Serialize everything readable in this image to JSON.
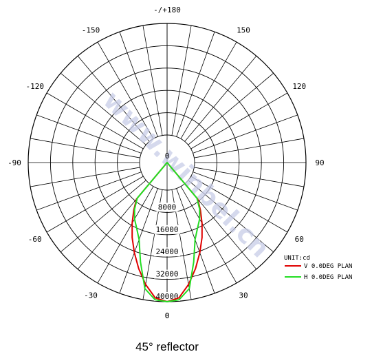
{
  "chart_data": {
    "type": "polar-line",
    "angle_unit": "deg",
    "radial_unit_label": "UNIT:cd",
    "r_max": 40000,
    "rings": [
      8000,
      16000,
      24000,
      32000,
      40000
    ],
    "radial_tick_labels": [
      "0",
      "8000",
      "16000",
      "24000",
      "32000",
      "40000"
    ],
    "angle_tick_labels": [
      {
        "angle": 180,
        "label": "-/+180"
      },
      {
        "angle": -150,
        "label": "-150"
      },
      {
        "angle": 150,
        "label": "150"
      },
      {
        "angle": -120,
        "label": "-120"
      },
      {
        "angle": 120,
        "label": "120"
      },
      {
        "angle": -90,
        "label": "-90"
      },
      {
        "angle": 90,
        "label": "90"
      },
      {
        "angle": -60,
        "label": "-60"
      },
      {
        "angle": 60,
        "label": "60"
      },
      {
        "angle": -30,
        "label": "-30"
      },
      {
        "angle": 30,
        "label": "30"
      },
      {
        "angle": 0,
        "label": "0"
      }
    ],
    "series": [
      {
        "name": "V 0.0DEG PLAN",
        "color": "#e00000",
        "points": [
          [
            -40,
            7200
          ],
          [
            -35,
            11000
          ],
          [
            -30,
            15200
          ],
          [
            -25,
            19800
          ],
          [
            -20,
            24500
          ],
          [
            -15,
            29500
          ],
          [
            -10,
            34500
          ],
          [
            -5,
            38800
          ],
          [
            0,
            40000
          ],
          [
            5,
            38800
          ],
          [
            10,
            34500
          ],
          [
            15,
            29500
          ],
          [
            20,
            24500
          ],
          [
            25,
            19800
          ],
          [
            30,
            15200
          ],
          [
            35,
            11000
          ],
          [
            40,
            7200
          ]
        ]
      },
      {
        "name": "H 0.0DEG PLAN",
        "color": "#22dd22",
        "points": [
          [
            -40,
            6800
          ],
          [
            -35,
            10500
          ],
          [
            -30,
            13500
          ],
          [
            -25,
            16000
          ],
          [
            -20,
            19500
          ],
          [
            -15,
            27000
          ],
          [
            -10,
            36000
          ],
          [
            -5,
            39500
          ],
          [
            0,
            40000
          ],
          [
            5,
            39500
          ],
          [
            10,
            36000
          ],
          [
            15,
            27000
          ],
          [
            20,
            19500
          ],
          [
            25,
            16000
          ],
          [
            30,
            13500
          ],
          [
            35,
            10500
          ],
          [
            40,
            6800
          ]
        ]
      }
    ],
    "legend_position": "bottom-right"
  },
  "watermark_text": "www.winbel.cn",
  "caption": "45°  reflector"
}
